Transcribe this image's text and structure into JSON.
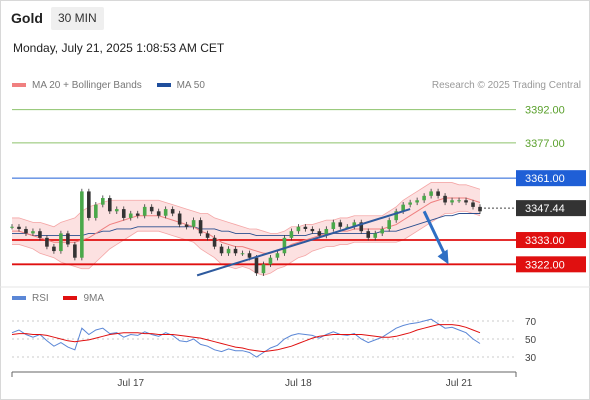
{
  "header": {
    "symbol": "Gold",
    "timeframe": "30 MIN",
    "datetime": "Monday, July 21, 2025 1:08:53 AM CET"
  },
  "legend": {
    "items": [
      {
        "label": "MA 20 + Bollinger Bands",
        "color": "#f08080"
      },
      {
        "label": "MA 50",
        "color": "#1f4e9c"
      }
    ],
    "credit": "Research © 2025 Trading Central"
  },
  "chart_data": {
    "type": "line",
    "x_ticks": [
      "Jul 17",
      "Jul 18",
      "Jul 21"
    ],
    "y_range": [
      3314,
      3400
    ],
    "levels": [
      {
        "label": "3392.00",
        "value": 3392,
        "kind": "target",
        "color": "#8dc26b"
      },
      {
        "label": "3377.00",
        "value": 3377,
        "kind": "target",
        "color": "#8dc26b"
      },
      {
        "label": "3361.00",
        "value": 3361,
        "kind": "pivot",
        "color": "#1f5fd6"
      },
      {
        "label": "3333.00",
        "value": 3333,
        "kind": "support",
        "color": "#e01010"
      },
      {
        "label": "3322.00",
        "value": 3322,
        "kind": "support",
        "color": "#e01010"
      }
    ],
    "last_price": {
      "label": "3347.44",
      "value": 3347.44
    },
    "price_series": [
      3339,
      3338,
      3336,
      3337,
      3334,
      3330,
      3328,
      3336,
      3331,
      3325,
      3355,
      3343,
      3349,
      3352,
      3346,
      3347,
      3343,
      3345,
      3344,
      3348,
      3346,
      3344,
      3347,
      3345,
      3340,
      3339,
      3342,
      3336,
      3334,
      3330,
      3327,
      3329,
      3327,
      3327,
      3325,
      3318,
      3322,
      3325,
      3327,
      3334,
      3337,
      3339,
      3338,
      3337,
      3335,
      3338,
      3341,
      3339,
      3339,
      3341,
      3337,
      3334,
      3336,
      3338,
      3342,
      3346,
      3349,
      3350,
      3351,
      3353,
      3355,
      3353,
      3350,
      3351,
      3351,
      3350,
      3348,
      3346
    ],
    "ma20": [
      3337,
      3337,
      3336,
      3335,
      3334,
      3333,
      3332,
      3332,
      3332,
      3332,
      3333,
      3334,
      3336,
      3338,
      3340,
      3341,
      3342,
      3343,
      3344,
      3344,
      3344,
      3344,
      3343,
      3342,
      3341,
      3340,
      3339,
      3337,
      3336,
      3334,
      3332,
      3331,
      3330,
      3330,
      3329,
      3328,
      3327,
      3327,
      3328,
      3329,
      3331,
      3332,
      3333,
      3334,
      3335,
      3336,
      3336,
      3337,
      3337,
      3338,
      3338,
      3338,
      3338,
      3338,
      3339,
      3340,
      3342,
      3344,
      3346,
      3348,
      3350,
      3351,
      3352,
      3352,
      3352,
      3352,
      3351,
      3350
    ],
    "ma50": [
      3336,
      3336,
      3336,
      3335,
      3335,
      3335,
      3335,
      3335,
      3335,
      3335,
      3335,
      3336,
      3336,
      3337,
      3337,
      3338,
      3338,
      3338,
      3339,
      3339,
      3339,
      3339,
      3339,
      3339,
      3339,
      3339,
      3339,
      3338,
      3338,
      3338,
      3337,
      3337,
      3336,
      3336,
      3336,
      3335,
      3335,
      3335,
      3335,
      3335,
      3335,
      3335,
      3335,
      3336,
      3336,
      3336,
      3336,
      3336,
      3336,
      3336,
      3336,
      3336,
      3336,
      3337,
      3337,
      3337,
      3338,
      3339,
      3340,
      3341,
      3342,
      3343,
      3344,
      3344,
      3345,
      3345,
      3345,
      3345
    ],
    "bb_width": [
      6,
      6,
      6,
      6,
      7,
      7,
      7,
      9,
      10,
      11,
      13,
      14,
      13,
      12,
      11,
      10,
      9,
      8,
      7,
      7,
      7,
      7,
      7,
      7,
      7,
      7,
      7,
      8,
      9,
      9,
      10,
      10,
      10,
      9,
      9,
      10,
      10,
      9,
      8,
      8,
      8,
      7,
      7,
      6,
      6,
      6,
      6,
      6,
      6,
      6,
      6,
      6,
      6,
      6,
      7,
      8,
      9,
      9,
      9,
      9,
      9,
      8,
      7,
      7,
      6,
      6,
      6,
      6
    ],
    "trendlines": [
      {
        "from": [
          26.5,
          3317
        ],
        "to": [
          57.0,
          3347
        ],
        "color": "#2e5a9e"
      }
    ],
    "arrow": {
      "from": [
        59.0,
        3346
      ],
      "to": [
        62.5,
        3322
      ],
      "color": "#2e6fc4"
    },
    "rsi": {
      "legend": [
        {
          "label": "RSI",
          "color": "#5b87d6"
        },
        {
          "label": "9MA",
          "color": "#e01010"
        }
      ],
      "ticks": [
        "70",
        "50",
        "30"
      ],
      "range": [
        20,
        80
      ],
      "rsi_values": [
        57,
        60,
        55,
        52,
        55,
        48,
        42,
        46,
        41,
        38,
        62,
        55,
        60,
        62,
        56,
        57,
        52,
        55,
        54,
        58,
        55,
        53,
        57,
        54,
        48,
        47,
        50,
        44,
        42,
        38,
        36,
        39,
        37,
        37,
        35,
        30,
        35,
        40,
        43,
        50,
        54,
        56,
        55,
        54,
        51,
        55,
        58,
        55,
        54,
        56,
        50,
        46,
        49,
        52,
        57,
        62,
        65,
        67,
        68,
        70,
        72,
        67,
        62,
        63,
        60,
        57,
        50,
        45
      ],
      "ma_values": [
        55,
        56,
        56,
        55,
        55,
        54,
        52,
        50,
        48,
        47,
        48,
        49,
        51,
        53,
        55,
        56,
        57,
        57,
        57,
        56,
        56,
        55,
        55,
        55,
        54,
        53,
        52,
        51,
        49,
        47,
        45,
        43,
        41,
        40,
        38,
        37,
        36,
        37,
        38,
        40,
        42,
        45,
        48,
        51,
        53,
        54,
        55,
        55,
        55,
        55,
        55,
        54,
        53,
        52,
        52,
        53,
        55,
        57,
        60,
        62,
        64,
        66,
        66,
        66,
        65,
        63,
        60,
        57
      ]
    }
  }
}
